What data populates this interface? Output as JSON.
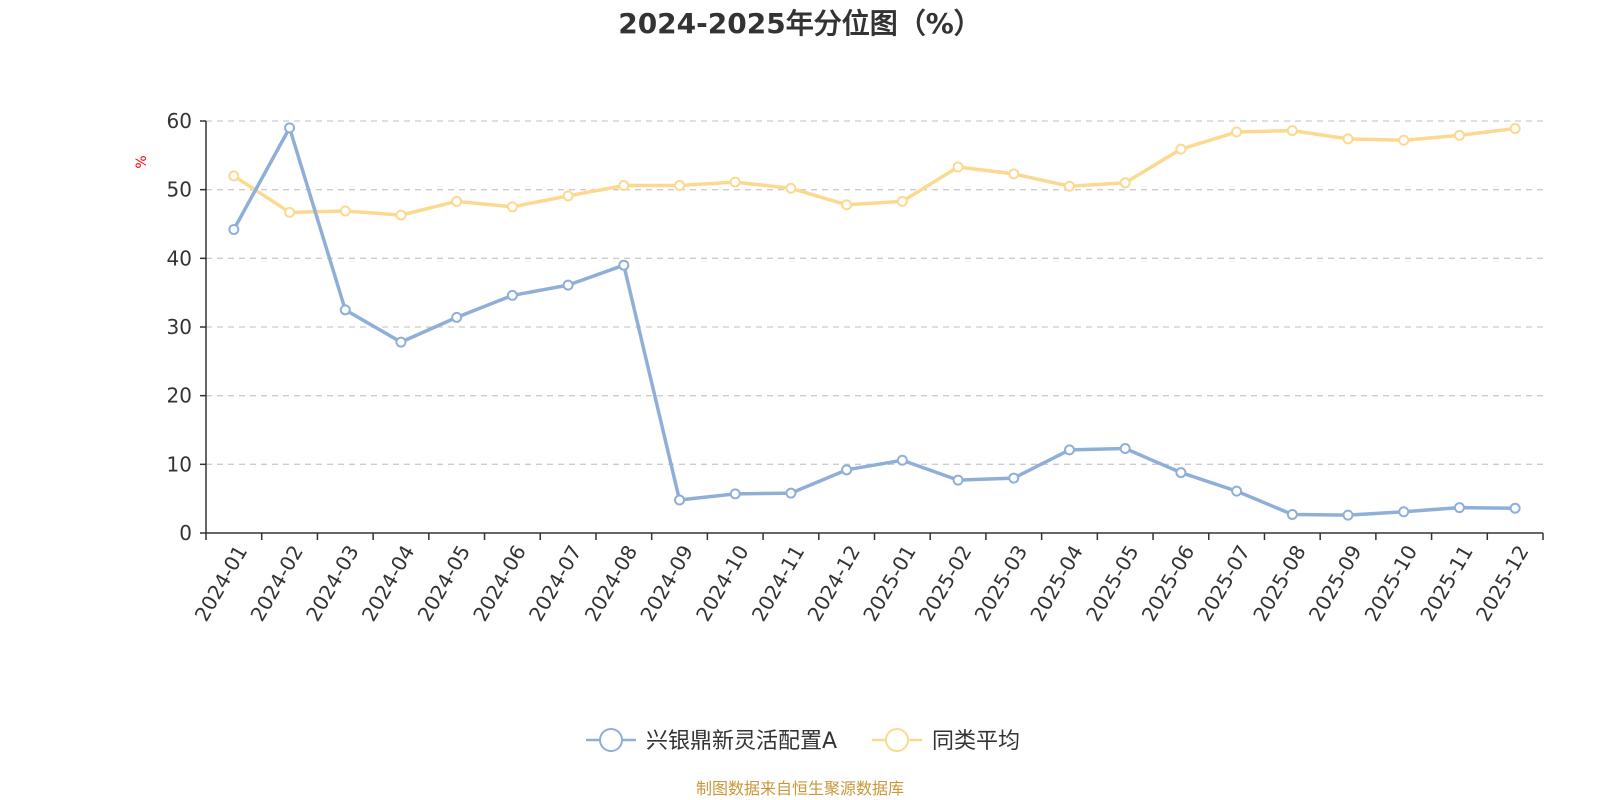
{
  "chart_data": {
    "type": "line",
    "title": "2024-2025年分位图（%）",
    "ylabel": "%",
    "ylim": [
      0,
      60
    ],
    "yticks": [
      0,
      10,
      20,
      30,
      40,
      50,
      60
    ],
    "grid": true,
    "legend_position": "bottom",
    "x": [
      "2024-01",
      "2024-02",
      "2024-03",
      "2024-04",
      "2024-05",
      "2024-06",
      "2024-07",
      "2024-08",
      "2024-09",
      "2024-10",
      "2024-11",
      "2024-12",
      "2025-01",
      "2025-02",
      "2025-03",
      "2025-04",
      "2025-05",
      "2025-06",
      "2025-07",
      "2025-08",
      "2025-09",
      "2025-10",
      "2025-11",
      "2025-12"
    ],
    "series": [
      {
        "name": "兴银鼎新灵活配置A",
        "color": "#8fafd9",
        "values": [
          44.2,
          59.0,
          32.5,
          27.8,
          31.4,
          34.6,
          36.1,
          39.0,
          4.8,
          5.7,
          5.8,
          9.2,
          10.6,
          7.7,
          8.0,
          12.1,
          12.3,
          8.8,
          6.1,
          2.7,
          2.6,
          3.1,
          3.7,
          3.6
        ]
      },
      {
        "name": "同类平均",
        "color": "#fcd990",
        "values": [
          52.0,
          46.7,
          46.9,
          46.3,
          48.3,
          47.5,
          49.1,
          50.6,
          50.6,
          51.1,
          50.2,
          47.8,
          48.3,
          53.3,
          52.3,
          50.5,
          51.0,
          55.9,
          58.4,
          58.6,
          57.4,
          57.2,
          57.9,
          58.9
        ]
      }
    ]
  },
  "source_text": "制图数据来自恒生聚源数据库",
  "colors": {
    "axis": "#333333",
    "grid": "#cccccc",
    "unit_label": "#ff0000",
    "source_text": "#c9973a"
  }
}
